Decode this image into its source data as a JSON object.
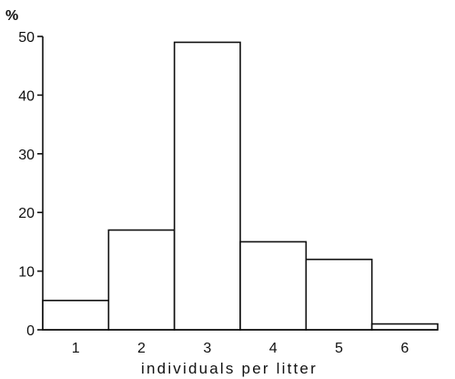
{
  "chart_data": {
    "type": "bar",
    "title": "",
    "xlabel": "individuals per litter",
    "ylabel": "%",
    "categories": [
      "1",
      "2",
      "3",
      "4",
      "5",
      "6"
    ],
    "values": [
      5,
      17,
      49,
      15,
      12,
      1
    ],
    "yticks": [
      "0",
      "10",
      "20",
      "30",
      "40",
      "50"
    ],
    "ylim": [
      0,
      50
    ],
    "grid": false,
    "legend": "none",
    "bar_fill": "#ffffff",
    "line_color": "#111111"
  }
}
